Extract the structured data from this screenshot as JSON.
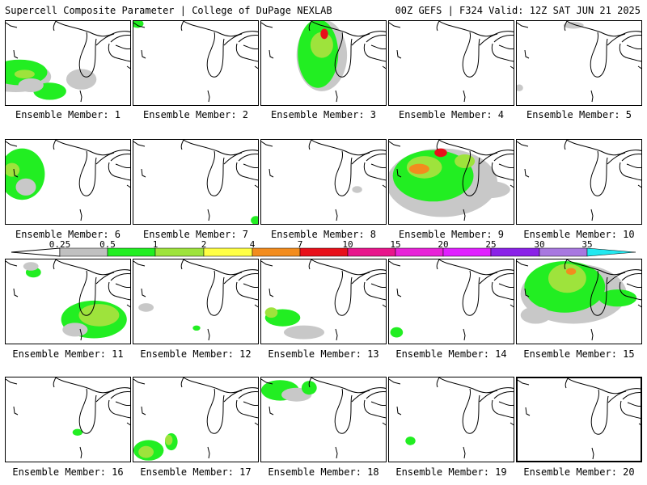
{
  "header": {
    "left_title": "Supercell Composite Parameter | College of DuPage NEXLAB",
    "right_title": "00Z GEFS | F324 Valid: 12Z SAT JUN 21 2025"
  },
  "colorbar": {
    "tick_labels": [
      "0.25",
      "0.5",
      "1",
      "2",
      "4",
      "7",
      "10",
      "15",
      "20",
      "25",
      "30",
      "35"
    ],
    "colors": [
      "#c0c0c0",
      "#22ee22",
      "#9ee33c",
      "#ffff44",
      "#f28c1e",
      "#e8101a",
      "#e8168c",
      "#e823d8",
      "#e020ff",
      "#8a22e8",
      "#a878e0",
      "#22e8f0"
    ]
  },
  "members": [
    {
      "label": "Ensemble Member: 1",
      "blobs": [
        [
          "low",
          0.08,
          0.65,
          0.28,
          0.18
        ],
        [
          "mid",
          0.11,
          0.6,
          0.22,
          0.15
        ],
        [
          "high",
          0.15,
          0.62,
          0.08,
          0.05
        ],
        [
          "mid",
          0.35,
          0.82,
          0.13,
          0.1
        ],
        [
          "low",
          0.6,
          0.68,
          0.12,
          0.12
        ],
        [
          "low",
          0.2,
          0.75,
          0.1,
          0.08
        ]
      ]
    },
    {
      "label": "Ensemble Member: 2",
      "blobs": [
        [
          "mid",
          0.03,
          0.03,
          0.05,
          0.05
        ]
      ]
    },
    {
      "label": "Ensemble Member: 3",
      "blobs": [
        [
          "low",
          0.48,
          0.4,
          0.2,
          0.42
        ],
        [
          "mid",
          0.45,
          0.38,
          0.16,
          0.4
        ],
        [
          "high",
          0.48,
          0.28,
          0.09,
          0.15
        ],
        [
          "hot",
          0.5,
          0.15,
          0.03,
          0.06
        ]
      ]
    },
    {
      "label": "Ensemble Member: 4",
      "blobs": []
    },
    {
      "label": "Ensemble Member: 5",
      "blobs": [
        [
          "low",
          0.45,
          0.05,
          0.08,
          0.04
        ],
        [
          "low",
          0.02,
          0.78,
          0.03,
          0.04
        ]
      ]
    },
    {
      "label": "Ensemble Member: 6",
      "blobs": [
        [
          "mid",
          0.13,
          0.4,
          0.18,
          0.3
        ],
        [
          "high",
          0.05,
          0.35,
          0.06,
          0.08
        ],
        [
          "low",
          0.16,
          0.55,
          0.08,
          0.1
        ]
      ]
    },
    {
      "label": "Ensemble Member: 7",
      "blobs": [
        [
          "mid",
          0.97,
          0.94,
          0.04,
          0.05
        ]
      ]
    },
    {
      "label": "Ensemble Member: 8",
      "blobs": [
        [
          "low",
          0.76,
          0.58,
          0.04,
          0.04
        ]
      ]
    },
    {
      "label": "Ensemble Member: 9",
      "blobs": [
        [
          "low",
          0.42,
          0.5,
          0.44,
          0.4
        ],
        [
          "mid",
          0.35,
          0.42,
          0.32,
          0.3
        ],
        [
          "high",
          0.28,
          0.32,
          0.14,
          0.13
        ],
        [
          "orange",
          0.24,
          0.34,
          0.08,
          0.06
        ],
        [
          "red",
          0.41,
          0.15,
          0.05,
          0.05
        ],
        [
          "low",
          0.8,
          0.58,
          0.16,
          0.1
        ],
        [
          "high",
          0.6,
          0.25,
          0.08,
          0.08
        ]
      ]
    },
    {
      "label": "Ensemble Member: 10",
      "blobs": []
    },
    {
      "label": "Ensemble Member: 11",
      "blobs": [
        [
          "mid",
          0.22,
          0.15,
          0.06,
          0.06
        ],
        [
          "mid",
          0.7,
          0.7,
          0.26,
          0.22
        ],
        [
          "high",
          0.74,
          0.65,
          0.16,
          0.13
        ],
        [
          "low",
          0.55,
          0.82,
          0.1,
          0.08
        ],
        [
          "low",
          0.2,
          0.08,
          0.06,
          0.05
        ]
      ]
    },
    {
      "label": "Ensemble Member: 12",
      "blobs": [
        [
          "low",
          0.1,
          0.56,
          0.06,
          0.05
        ],
        [
          "mid",
          0.5,
          0.8,
          0.03,
          0.03
        ]
      ]
    },
    {
      "label": "Ensemble Member: 13",
      "blobs": [
        [
          "mid",
          0.17,
          0.68,
          0.14,
          0.1
        ],
        [
          "high",
          0.08,
          0.62,
          0.05,
          0.06
        ],
        [
          "low",
          0.34,
          0.85,
          0.16,
          0.08
        ]
      ]
    },
    {
      "label": "Ensemble Member: 14",
      "blobs": [
        [
          "mid",
          0.06,
          0.85,
          0.05,
          0.06
        ]
      ]
    },
    {
      "label": "Ensemble Member: 15",
      "blobs": [
        [
          "low",
          0.45,
          0.4,
          0.42,
          0.35
        ],
        [
          "mid",
          0.38,
          0.32,
          0.32,
          0.3
        ],
        [
          "high",
          0.4,
          0.22,
          0.15,
          0.17
        ],
        [
          "orange",
          0.43,
          0.14,
          0.04,
          0.04
        ],
        [
          "low",
          0.15,
          0.65,
          0.12,
          0.1
        ],
        [
          "mid",
          0.8,
          0.45,
          0.15,
          0.1
        ]
      ]
    },
    {
      "label": "Ensemble Member: 16",
      "blobs": [
        [
          "mid",
          0.57,
          0.64,
          0.04,
          0.04
        ]
      ]
    },
    {
      "label": "Ensemble Member: 17",
      "blobs": [
        [
          "mid",
          0.12,
          0.85,
          0.12,
          0.12
        ],
        [
          "high",
          0.1,
          0.87,
          0.06,
          0.07
        ],
        [
          "mid",
          0.3,
          0.75,
          0.05,
          0.1
        ],
        [
          "high",
          0.28,
          0.73,
          0.03,
          0.06
        ]
      ]
    },
    {
      "label": "Ensemble Member: 18",
      "blobs": [
        [
          "mid",
          0.15,
          0.15,
          0.15,
          0.12
        ],
        [
          "low",
          0.28,
          0.2,
          0.12,
          0.08
        ],
        [
          "mid",
          0.38,
          0.12,
          0.06,
          0.08
        ]
      ]
    },
    {
      "label": "Ensemble Member: 19",
      "blobs": [
        [
          "mid",
          0.17,
          0.74,
          0.04,
          0.05
        ]
      ]
    },
    {
      "label": "Ensemble Member: 20",
      "blobs": []
    }
  ]
}
